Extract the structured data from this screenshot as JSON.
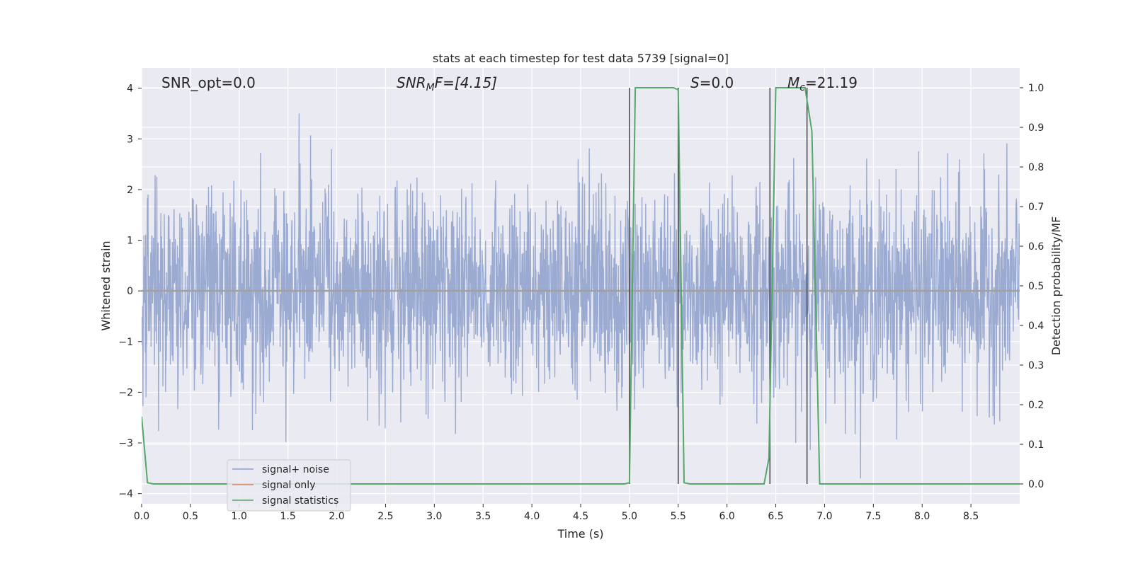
{
  "chart_data": {
    "type": "line",
    "title": "stats at each timestep for test data 5739 [signal=0]",
    "xlabel": "Time (s)",
    "ylabel": "Whitened strain",
    "y2label": "Detection probability/MF",
    "xlim": [
      0.0,
      9.0
    ],
    "ylim": [
      -4.2,
      4.4
    ],
    "y2lim": [
      -0.05,
      1.05
    ],
    "xticks": [
      0.0,
      0.5,
      1.0,
      1.5,
      2.0,
      2.5,
      3.0,
      3.5,
      4.0,
      4.5,
      5.0,
      5.5,
      6.0,
      6.5,
      7.0,
      7.5,
      8.0,
      8.5
    ],
    "xtick_labels": [
      "0.0",
      "0.5",
      "1.0",
      "1.5",
      "2.0",
      "2.5",
      "3.0",
      "3.5",
      "4.0",
      "4.5",
      "5.0",
      "5.5",
      "6.0",
      "6.5",
      "7.0",
      "7.5",
      "8.0",
      "8.5"
    ],
    "yticks": [
      -4,
      -3,
      -2,
      -1,
      0,
      1,
      2,
      3,
      4
    ],
    "ytick_labels": [
      "−4",
      "−3",
      "−2",
      "−1",
      "0",
      "1",
      "2",
      "3",
      "4"
    ],
    "y2ticks": [
      0.0,
      0.1,
      0.2,
      0.3,
      0.4,
      0.5,
      0.6,
      0.7,
      0.8,
      0.9,
      1.0
    ],
    "y2tick_labels": [
      "0.0",
      "0.1",
      "0.2",
      "0.3",
      "0.4",
      "0.5",
      "0.6",
      "0.7",
      "0.8",
      "0.9",
      "1.0"
    ],
    "grid": true,
    "legend_placement": "lower-left",
    "annotations": {
      "snr_opt": "SNR_opt=0.0",
      "snr_mf_main": "SNR",
      "snr_mf_sub": "M",
      "snr_mf_rest": "F=[4.15]",
      "s_main": "S",
      "s_rest": "=0.0",
      "mc_main": "M",
      "mc_sub": "c",
      "mc_rest": "=21.19"
    },
    "series": [
      {
        "name": "signal+ noise",
        "axis": "left",
        "color": "#8c9fcb",
        "description": "noise-like whitened strain, amplitude mostly within ±2 with peaks up to about ±3.5",
        "amplitude_envelope": [
          -3.7,
          3.5
        ]
      },
      {
        "name": "signal only",
        "axis": "left",
        "color": "#dd8452",
        "x": [
          0.0,
          9.0
        ],
        "y": [
          0.0,
          0.0
        ]
      },
      {
        "name": "signal statistics",
        "axis": "right",
        "color": "#55a868",
        "x": [
          0.0,
          0.06,
          0.12,
          4.95,
          5.0,
          5.06,
          5.45,
          5.5,
          5.56,
          5.62,
          6.38,
          6.43,
          6.5,
          6.8,
          6.87,
          6.95,
          9.0
        ],
        "y": [
          0.17,
          0.003,
          0.0,
          0.0,
          0.003,
          1.0,
          1.0,
          0.995,
          0.003,
          0.0,
          0.0,
          0.065,
          1.0,
          1.0,
          0.89,
          0.0,
          0.0
        ]
      }
    ],
    "vertical_lines": [
      {
        "x": 5.0,
        "color": "#444444"
      },
      {
        "x": 5.5,
        "color": "#444444"
      },
      {
        "x": 6.44,
        "color": "#444444"
      },
      {
        "x": 6.82,
        "color": "#444444"
      }
    ]
  }
}
